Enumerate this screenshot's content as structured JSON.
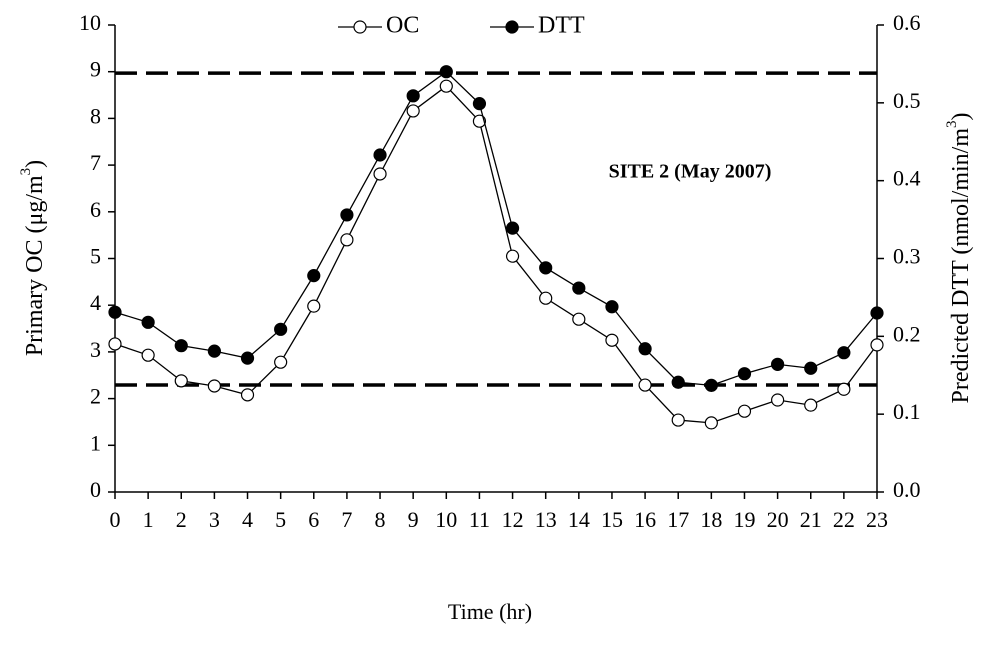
{
  "chart_data": {
    "type": "line",
    "x_label": "Time (hr)",
    "y_label": "Primary OC (μg/m",
    "y_label_sup": "3",
    "y_label_end": ")",
    "y2_label": "Predicted DTT (nmol/min/m",
    "y2_label_sup": "3",
    "y2_label_end": ")",
    "annotation": "SITE 2 (May 2007)",
    "x": [
      0,
      1,
      2,
      3,
      4,
      5,
      6,
      7,
      8,
      9,
      10,
      11,
      12,
      13,
      14,
      15,
      16,
      17,
      18,
      19,
      20,
      21,
      22,
      23
    ],
    "xlim": [
      0,
      23
    ],
    "xticks": [
      0,
      1,
      2,
      3,
      4,
      5,
      6,
      7,
      8,
      9,
      10,
      11,
      12,
      13,
      14,
      15,
      16,
      17,
      18,
      19,
      20,
      21,
      22,
      23
    ],
    "ylim": [
      0,
      10
    ],
    "yticks": [
      0,
      1,
      2,
      3,
      4,
      5,
      6,
      7,
      8,
      9,
      10
    ],
    "y2lim": [
      0,
      0.6
    ],
    "y2ticks": [
      {
        "value": 0,
        "label": "0.0"
      },
      0.1,
      0.2,
      0.3,
      0.4,
      0.5,
      0.6
    ],
    "reference_lines": [
      8.97,
      2.29
    ],
    "series": [
      {
        "name": "OC",
        "color": "#ffffff",
        "values": [
          3.17,
          2.93,
          2.38,
          2.27,
          2.08,
          2.78,
          3.98,
          5.4,
          6.81,
          8.16,
          8.69,
          7.94,
          5.05,
          4.15,
          3.7,
          3.25,
          2.29,
          1.54,
          1.48,
          1.73,
          1.97,
          1.86,
          2.2,
          3.15
        ]
      },
      {
        "name": "DTT",
        "color": "#000000",
        "axis": "y2",
        "values": [
          0.231,
          0.218,
          0.188,
          0.181,
          0.172,
          0.209,
          0.278,
          0.356,
          0.433,
          0.509,
          0.54,
          0.499,
          0.339,
          0.288,
          0.262,
          0.238,
          0.184,
          0.141,
          0.137,
          0.152,
          0.164,
          0.159,
          0.179,
          0.23
        ]
      }
    ]
  }
}
